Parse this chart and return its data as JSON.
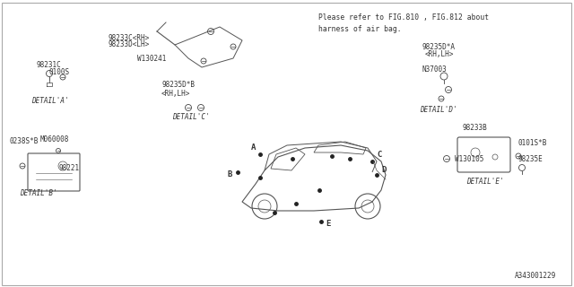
{
  "bg_color": "#ffffff",
  "border_color": "#cccccc",
  "line_color": "#555555",
  "text_color": "#333333",
  "title_note": "Please refer to FIG.810 , FIG.812 about\nharness of air bag.",
  "diagram_id": "A343001229",
  "detail_a_label": "DETAIL'A'",
  "detail_b_label": "DETAIL'B'",
  "detail_c_label": "DETAIL'C'",
  "detail_d_label": "DETAIL'D'",
  "detail_e_label": "DETAIL'E'",
  "parts": {
    "detail_a": [
      "98231C",
      "0100S"
    ],
    "detail_b": [
      "0238S*B",
      "M060008",
      "98221"
    ],
    "detail_c": [
      "98233C<RH>",
      "98233D<LH>",
      "W130241",
      "98235D*B\n<RH,LH>"
    ],
    "detail_d": [
      "98235D*A",
      "<RH,LH>",
      "N37003"
    ],
    "detail_e": [
      "98233B",
      "W130105",
      "0101S*B",
      "98235E"
    ],
    "main_labels": [
      "A",
      "B",
      "C",
      "D",
      "E"
    ]
  }
}
